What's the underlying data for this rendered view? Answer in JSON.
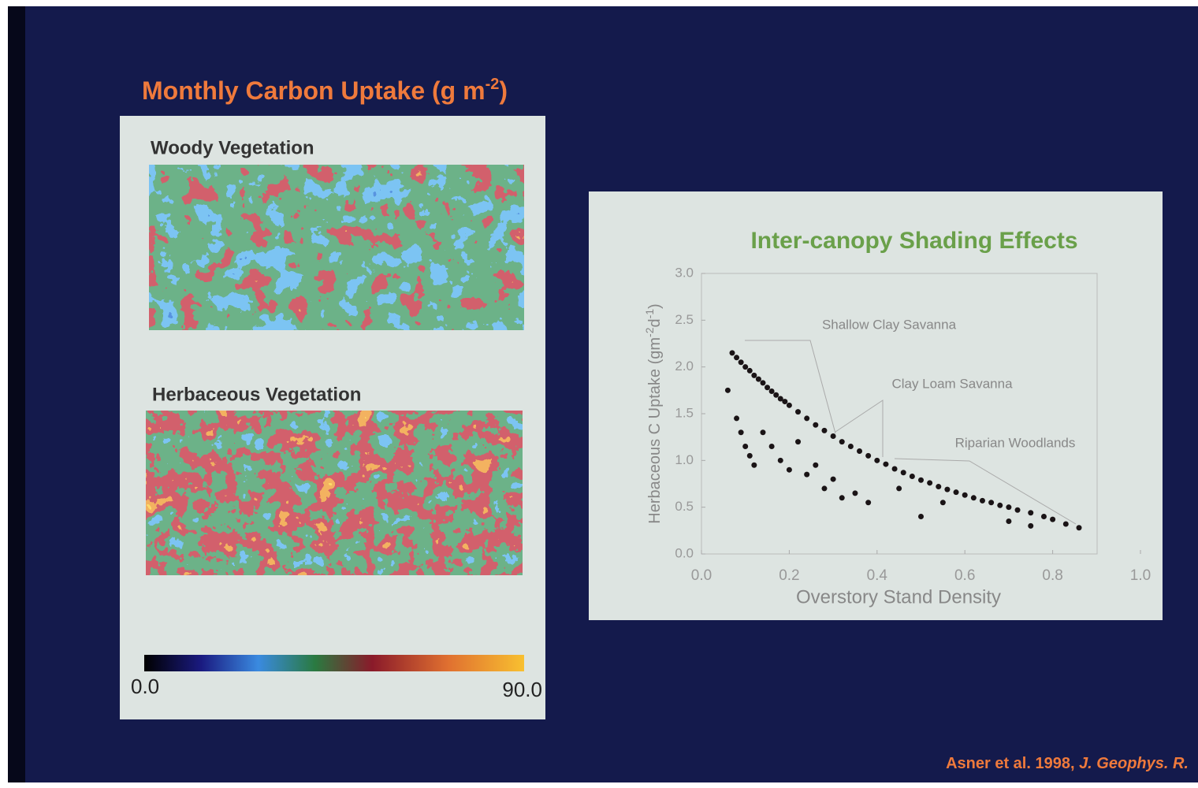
{
  "slide": {
    "citation": "Asner et al. 1998, ",
    "citation_journal": "J. Geophys. R."
  },
  "left_panel": {
    "title": [
      "Monthly Carbon Uptake (g m",
      "-2",
      ")"
    ],
    "maps": [
      {
        "label": "Woody Vegetation"
      },
      {
        "label": "Herbaceous Vegetation"
      }
    ],
    "colorbar": {
      "ticks": [
        {
          "value": 0,
          "label": "0.0"
        },
        {
          "value": 90,
          "label": "90.0"
        }
      ]
    }
  },
  "chart_data": {
    "type": "scatter",
    "title": "Inter-canopy Shading Effects",
    "x_label": "Overstory Stand Density",
    "y_label": [
      "Herbaceous C Uptake (gm",
      "-2",
      "d",
      "-1",
      ")"
    ],
    "annotations": [
      "Shallow Clay Savanna",
      "Clay Loam Savanna",
      "Riparian Woodlands"
    ],
    "color": "#1a1416",
    "xlim": [
      0,
      1
    ],
    "xticks": [
      {
        "value": 0,
        "label": "0.0"
      },
      {
        "value": 0.2,
        "label": "0.2"
      },
      {
        "value": 0.4,
        "label": "0.4"
      },
      {
        "value": 0.6,
        "label": "0.6"
      },
      {
        "value": 0.8,
        "label": "0.8"
      },
      {
        "value": 1,
        "label": "1.0"
      }
    ],
    "ylim": [
      0,
      3
    ],
    "yticks": [
      {
        "value": 0,
        "label": "0.0"
      },
      {
        "value": 0.5,
        "label": "0.5"
      },
      {
        "value": 1,
        "label": "1.0"
      },
      {
        "value": 1.5,
        "label": "1.5"
      },
      {
        "value": 2,
        "label": "2.0"
      },
      {
        "value": 2.5,
        "label": "2.5"
      },
      {
        "value": 3,
        "label": "3.0"
      }
    ],
    "x": [
      0.07,
      0.08,
      0.09,
      0.1,
      0.11,
      0.12,
      0.13,
      0.14,
      0.15,
      0.16,
      0.17,
      0.18,
      0.19,
      0.2,
      0.22,
      0.24,
      0.26,
      0.28,
      0.3,
      0.32,
      0.34,
      0.36,
      0.38,
      0.4,
      0.42,
      0.44,
      0.46,
      0.48,
      0.5,
      0.52,
      0.54,
      0.56,
      0.58,
      0.6,
      0.62,
      0.64,
      0.66,
      0.68,
      0.7,
      0.72,
      0.75,
      0.78,
      0.8,
      0.83,
      0.86,
      0.06,
      0.08,
      0.09,
      0.1,
      0.11,
      0.12,
      0.14,
      0.16,
      0.18,
      0.2,
      0.22,
      0.24,
      0.26,
      0.28,
      0.3,
      0.32,
      0.35,
      0.38,
      0.45,
      0.5,
      0.55,
      0.7,
      0.75
    ],
    "y": [
      2.15,
      2.1,
      2.05,
      2.0,
      1.96,
      1.91,
      1.87,
      1.83,
      1.78,
      1.74,
      1.7,
      1.66,
      1.63,
      1.59,
      1.52,
      1.45,
      1.38,
      1.32,
      1.26,
      1.2,
      1.15,
      1.1,
      1.05,
      1.0,
      0.96,
      0.91,
      0.87,
      0.83,
      0.79,
      0.76,
      0.72,
      0.69,
      0.66,
      0.63,
      0.6,
      0.57,
      0.55,
      0.52,
      0.5,
      0.47,
      0.44,
      0.4,
      0.37,
      0.32,
      0.28,
      1.75,
      1.45,
      1.3,
      1.15,
      1.05,
      0.95,
      1.3,
      1.15,
      1.0,
      0.9,
      1.2,
      0.85,
      0.95,
      0.7,
      0.8,
      0.6,
      0.65,
      0.55,
      0.7,
      0.4,
      0.55,
      0.35,
      0.3
    ]
  }
}
